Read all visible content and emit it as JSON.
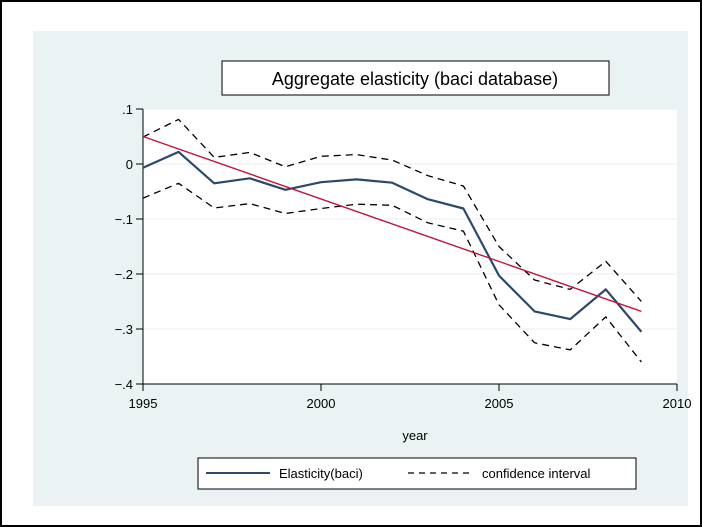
{
  "chart_data": {
    "type": "line",
    "title": "Aggregate elasticity (baci database)",
    "xlabel": "year",
    "ylabel": "",
    "xlim": [
      1995,
      2010
    ],
    "ylim": [
      -0.4,
      0.1
    ],
    "x_ticks": [
      1995,
      2000,
      2005,
      2010
    ],
    "x_tick_labels": [
      "1995",
      "2000",
      "2005",
      "2010"
    ],
    "y_ticks": [
      0.1,
      0,
      -0.1,
      -0.2,
      -0.3,
      -0.4
    ],
    "y_tick_labels": [
      ".1",
      "0",
      "−.1",
      "−.2",
      "−.3",
      "−.4"
    ],
    "grid": true,
    "legend_position": "bottom",
    "x": [
      1995,
      1996,
      1997,
      1998,
      1999,
      2000,
      2001,
      2002,
      2003,
      2004,
      2005,
      2006,
      2007,
      2008,
      2009
    ],
    "series": [
      {
        "name": "Elasticity(baci)",
        "style": "solid",
        "color": "#2b4a6b",
        "values": [
          -0.007,
          0.022,
          -0.035,
          -0.026,
          -0.047,
          -0.033,
          -0.028,
          -0.034,
          -0.064,
          -0.081,
          -0.203,
          -0.268,
          -0.282,
          -0.228,
          -0.305
        ]
      },
      {
        "name": "confidence interval",
        "style": "dashed",
        "color": "#000000",
        "values": [
          0.049,
          0.081,
          0.012,
          0.021,
          -0.005,
          0.014,
          0.017,
          0.007,
          -0.021,
          -0.04,
          -0.15,
          -0.211,
          -0.228,
          -0.177,
          -0.25
        ]
      },
      {
        "name": "",
        "style": "dashed",
        "color": "#000000",
        "values": [
          -0.062,
          -0.035,
          -0.08,
          -0.072,
          -0.09,
          -0.081,
          -0.073,
          -0.075,
          -0.107,
          -0.122,
          -0.256,
          -0.325,
          -0.338,
          -0.278,
          -0.36
        ]
      }
    ],
    "trend_line": {
      "color": "#c0143c",
      "x": [
        1995,
        2009
      ],
      "values": [
        0.05,
        -0.268
      ]
    },
    "legend": [
      {
        "label": "Elasticity(baci)",
        "style": "solid",
        "color": "#2b4a6b"
      },
      {
        "label": "confidence interval",
        "style": "dashed",
        "color": "#000000"
      }
    ],
    "colors": {
      "background": "#eaf2f3",
      "plot_background": "#ffffff",
      "grid": "#e8eef0"
    }
  }
}
